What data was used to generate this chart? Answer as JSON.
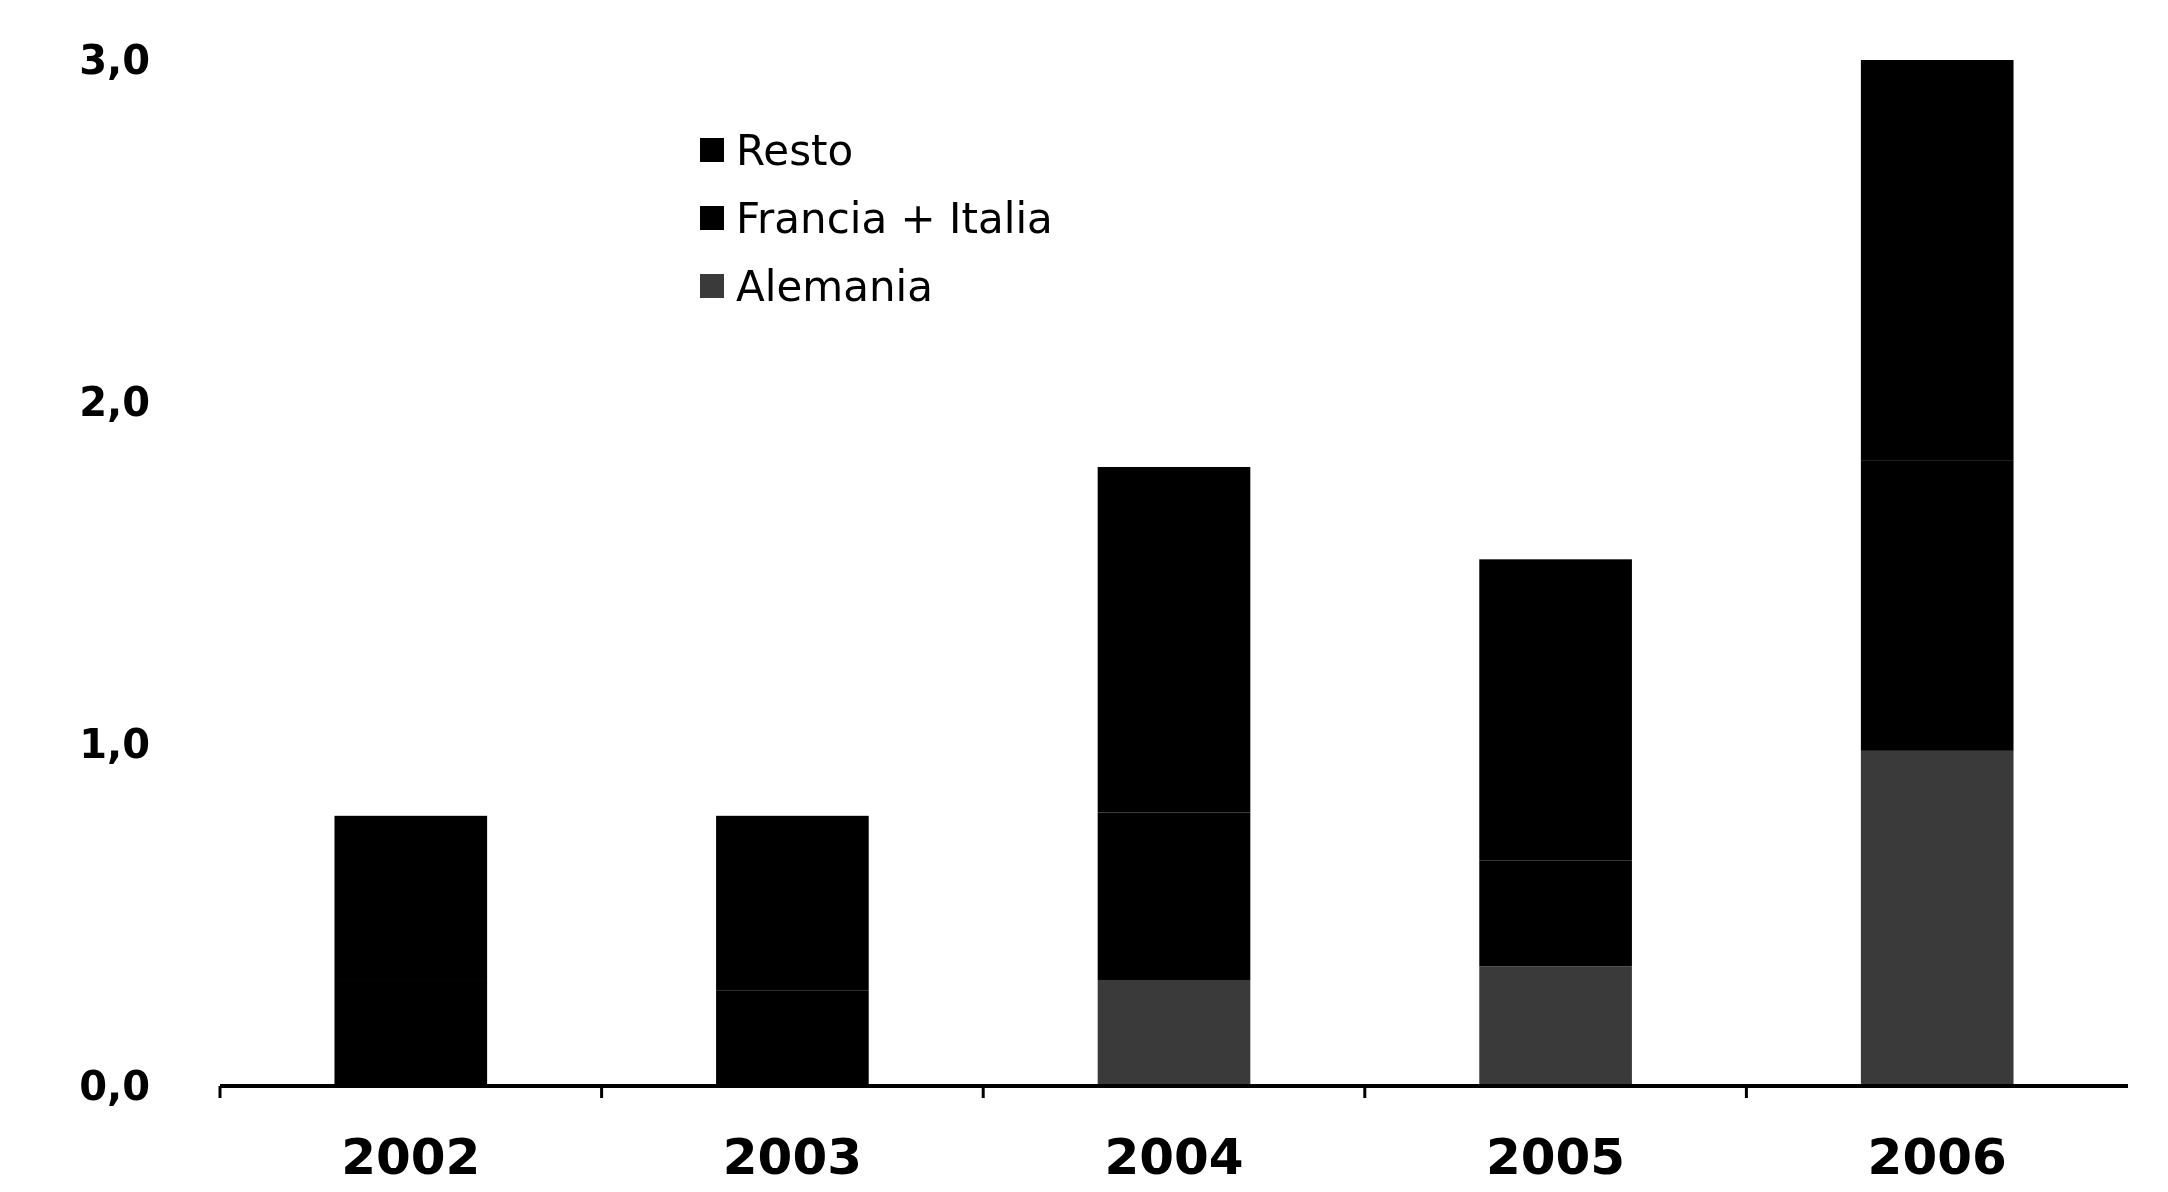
{
  "chart_data": {
    "type": "bar",
    "stacked": true,
    "categories": [
      "2002",
      "2003",
      "2004",
      "2005",
      "2006"
    ],
    "series": [
      {
        "name": "Alemania",
        "color": "#3a3a3a",
        "values": [
          0,
          0,
          0.31,
          0.35,
          0.98
        ]
      },
      {
        "name": "Francia + Italia",
        "color": "#000000",
        "values": [
          0.31,
          0.28,
          0.49,
          0.31,
          0.85
        ]
      },
      {
        "name": "Resto",
        "color": "#000000",
        "values": [
          0.48,
          0.51,
          1.01,
          0.88,
          1.17
        ]
      }
    ],
    "ylim": [
      0,
      3
    ],
    "yticks": [
      {
        "value": 0,
        "label": "0,0"
      },
      {
        "value": 1,
        "label": "1,0"
      },
      {
        "value": 2,
        "label": "2,0"
      },
      {
        "value": 3,
        "label": "3,0"
      }
    ],
    "grid": false,
    "legend": "top left"
  }
}
